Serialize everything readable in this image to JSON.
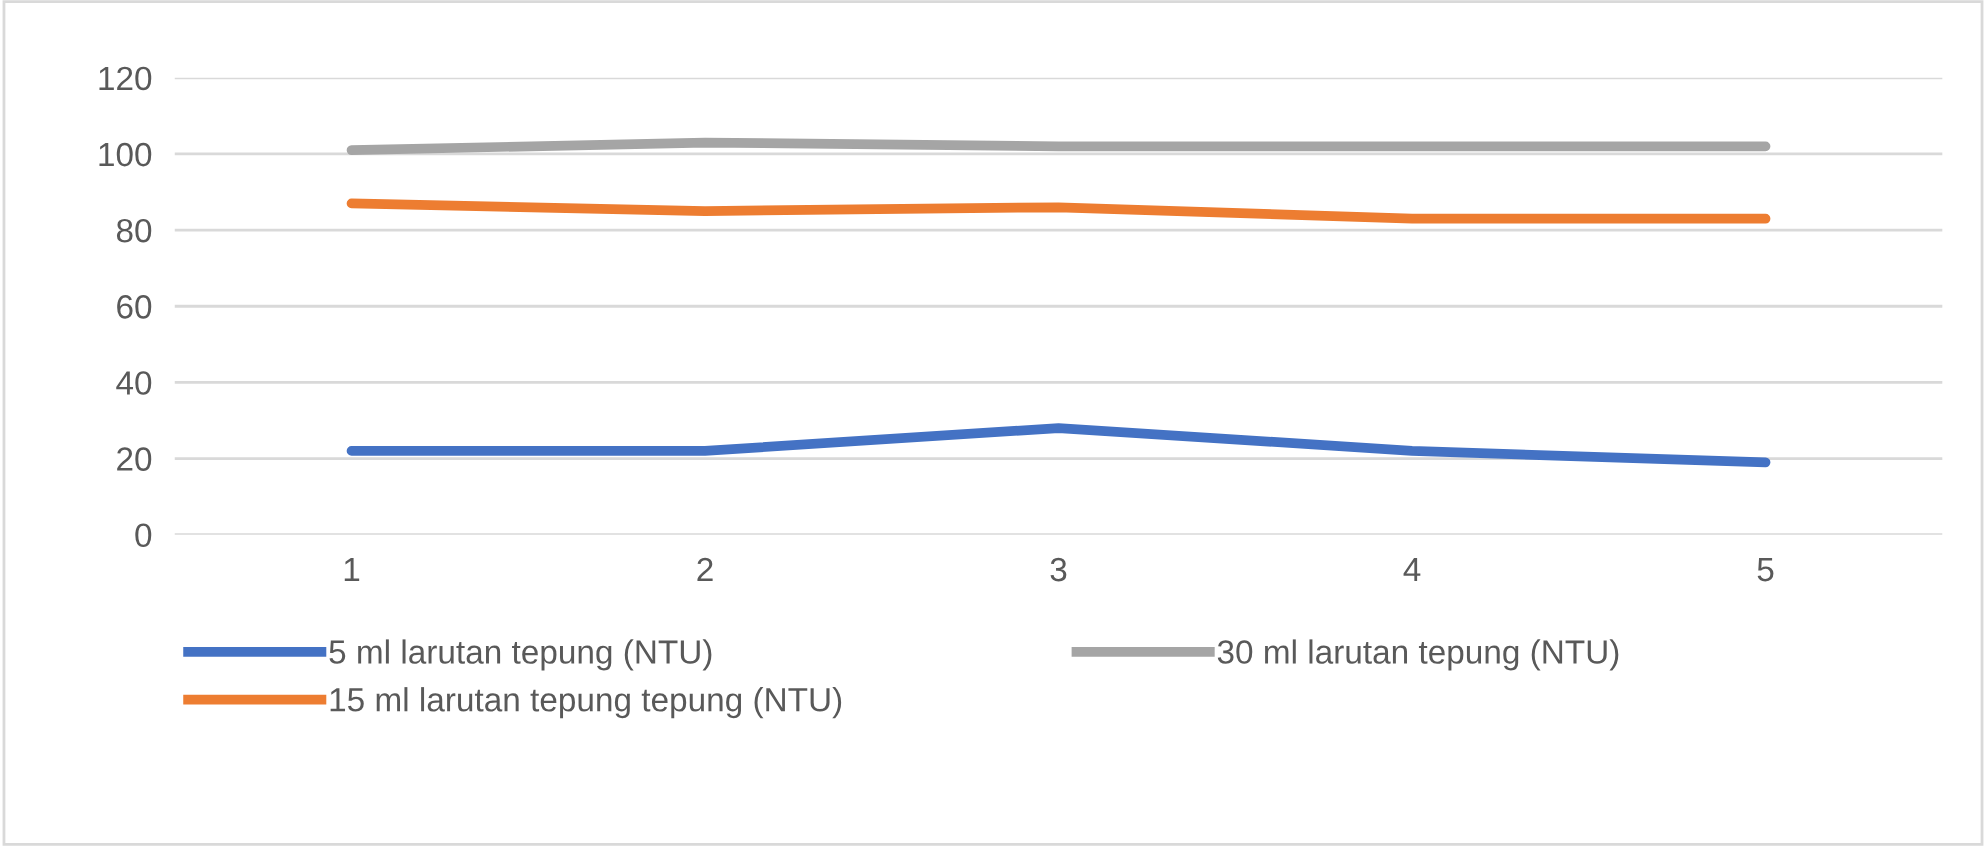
{
  "chart_data": {
    "type": "line",
    "categories": [
      "1",
      "2",
      "3",
      "4",
      "5"
    ],
    "series": [
      {
        "name": "5 ml larutan tepung (NTU)",
        "color": "#4472c4",
        "values": [
          22,
          22,
          28,
          22,
          19
        ]
      },
      {
        "name": "15 ml larutan tepung tepung (NTU)",
        "color": "#ed7d31",
        "values": [
          87,
          85,
          86,
          83,
          83
        ]
      },
      {
        "name": "30 ml larutan tepung (NTU)",
        "color": "#a5a5a5",
        "values": [
          101,
          103,
          102,
          102,
          102
        ]
      }
    ],
    "ylim": [
      0,
      120
    ],
    "yticks": [
      0,
      20,
      40,
      60,
      80,
      100,
      120
    ],
    "grid": "y",
    "legend": "bottom",
    "marker": "none",
    "line_style": "solid"
  }
}
